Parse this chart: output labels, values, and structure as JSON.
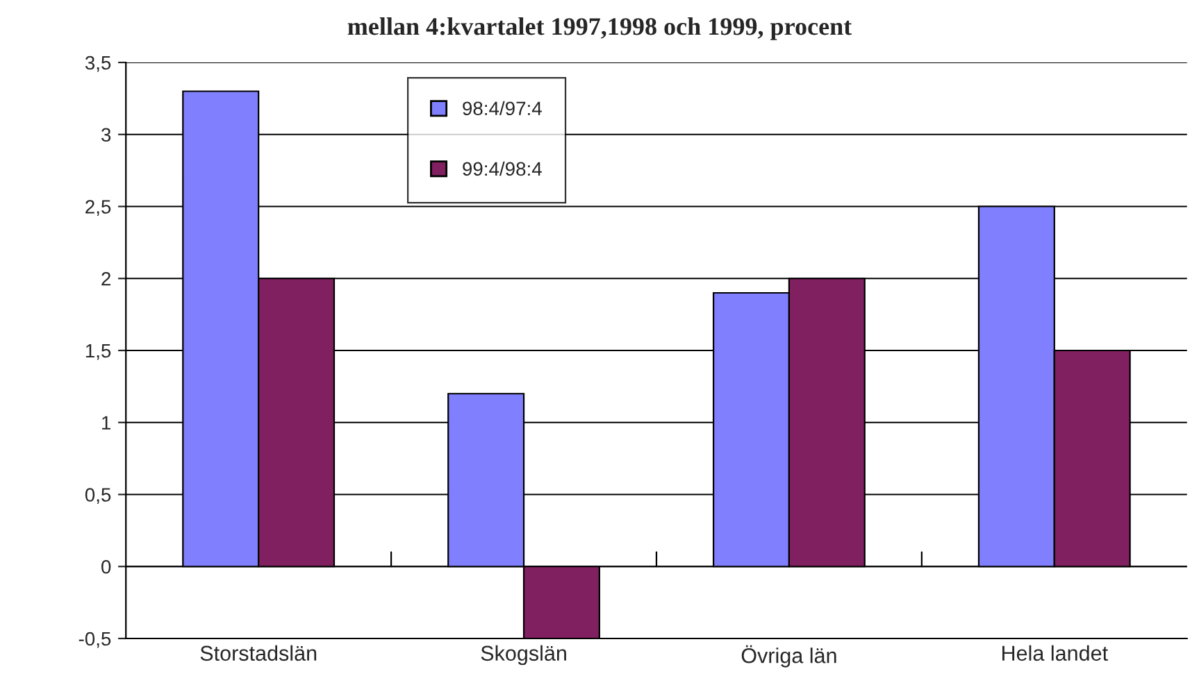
{
  "chart_data": {
    "type": "bar",
    "title": "mellan 4:kvartalet 1997,1998 och 1999, procent",
    "categories": [
      "Storstadslän",
      "Skogslän",
      "Övriga län",
      "Hela landet"
    ],
    "series": [
      {
        "name": "98:4/97:4",
        "color": "#8080ff",
        "values": [
          3.3,
          1.2,
          1.9,
          2.5
        ]
      },
      {
        "name": "99:4/98:4",
        "color": "#802060",
        "values": [
          2.0,
          -0.5,
          2.0,
          1.5
        ]
      }
    ],
    "ylim": [
      -0.5,
      3.5
    ],
    "yticks": [
      {
        "value": -0.5,
        "label": "-0,5"
      },
      0,
      {
        "value": 0.5,
        "label": "0,5"
      },
      1,
      {
        "value": 1.5,
        "label": "1,5"
      },
      2,
      {
        "value": 2.5,
        "label": "2,5"
      },
      3,
      {
        "value": 3.5,
        "label": "3,5"
      }
    ],
    "grid": "y",
    "legend": "top"
  }
}
